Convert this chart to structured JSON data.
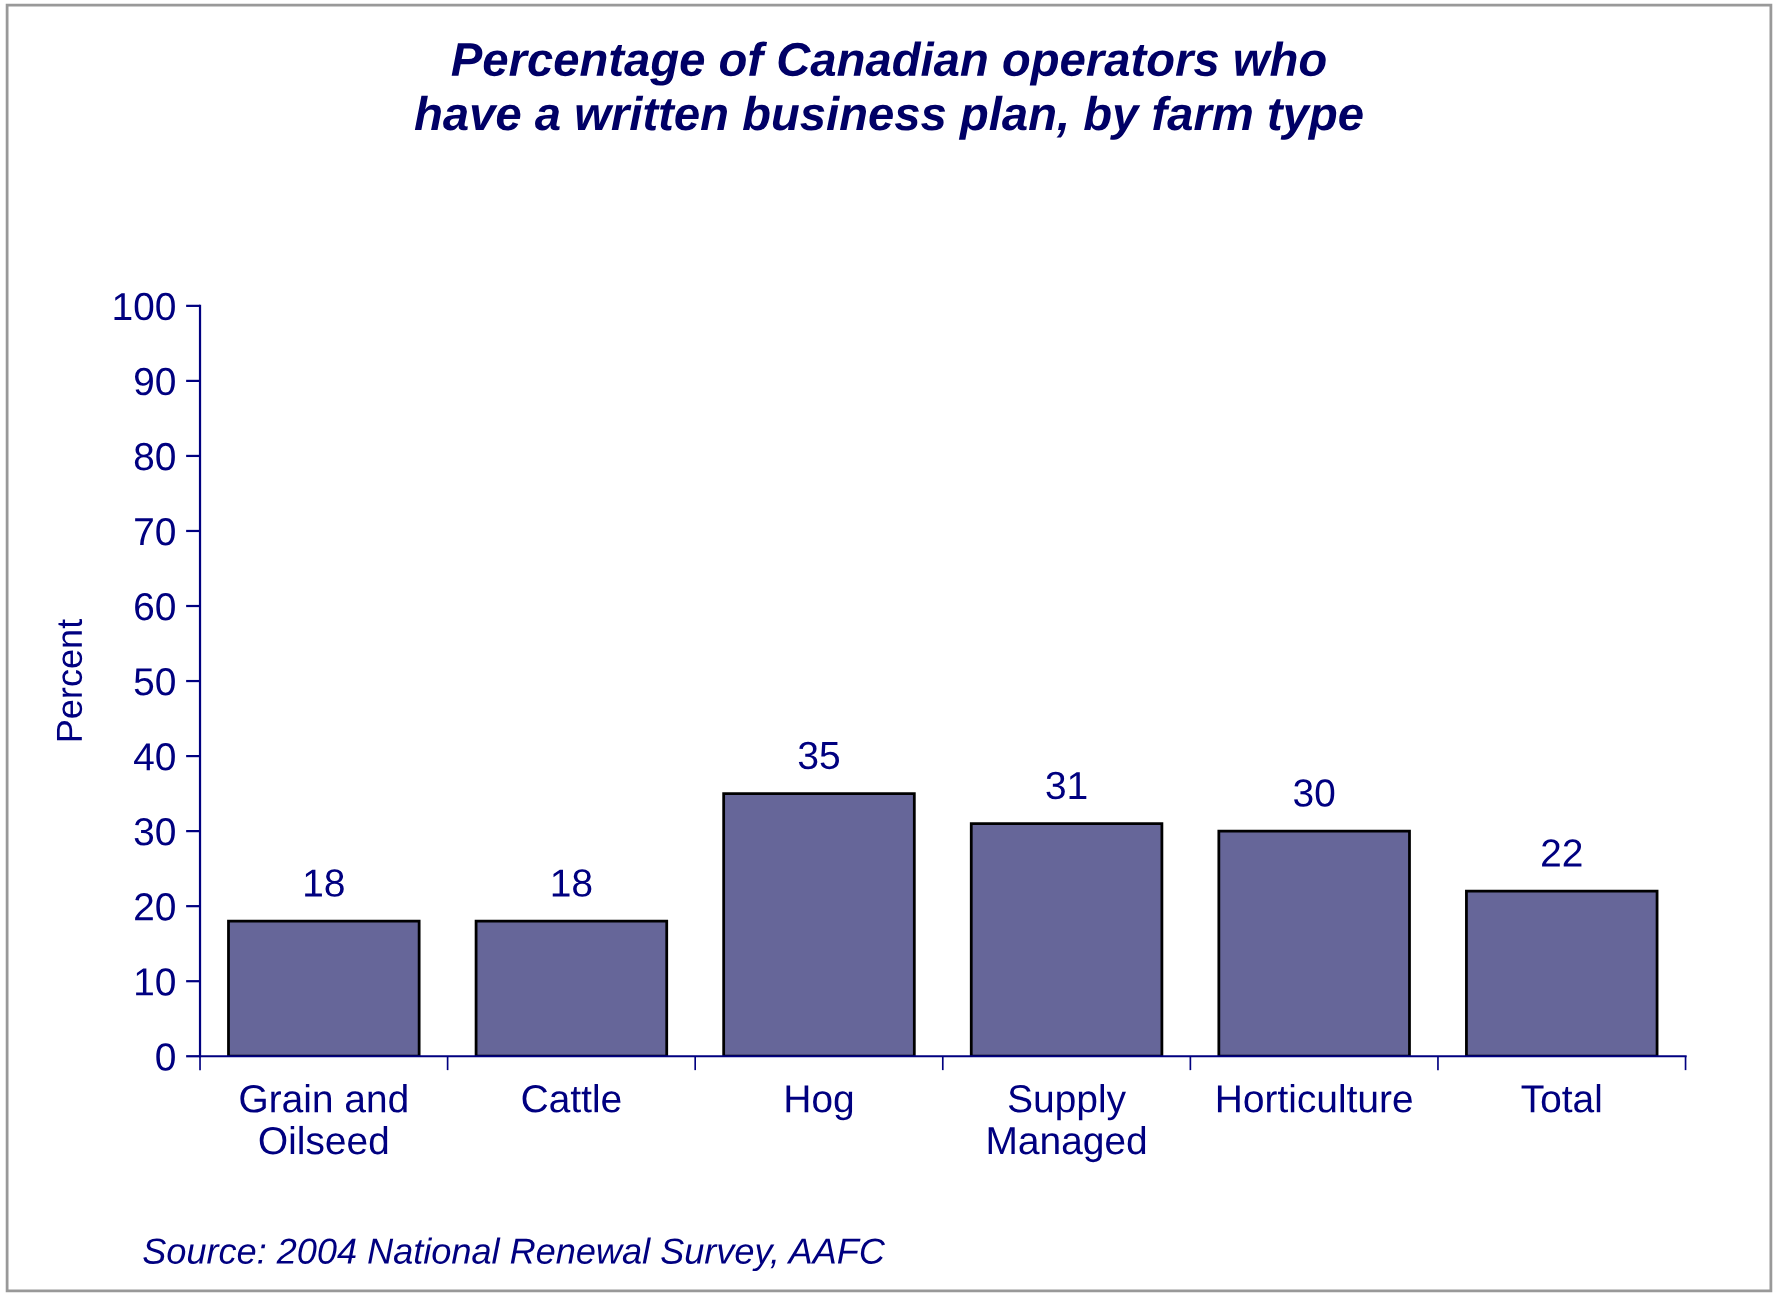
{
  "chart_data": {
    "type": "bar",
    "title": "Percentage of Canadian operators who\nhave a written business plan, by farm type",
    "ylabel": "Percent",
    "categories": [
      "Grain and\nOilseed",
      "Cattle",
      "Hog",
      "Supply\nManaged",
      "Horticulture",
      "Total"
    ],
    "values": [
      18,
      18,
      35,
      31,
      30,
      22
    ],
    "color": "#666699",
    "ylim": [
      0,
      100
    ],
    "yticks": [
      0,
      10,
      20,
      30,
      40,
      50,
      60,
      70,
      80,
      90,
      100
    ],
    "data_labels": true,
    "grid": false,
    "legend": false,
    "annotations": [
      "Source: 2004 National Renewal Survey, AAFC"
    ]
  }
}
